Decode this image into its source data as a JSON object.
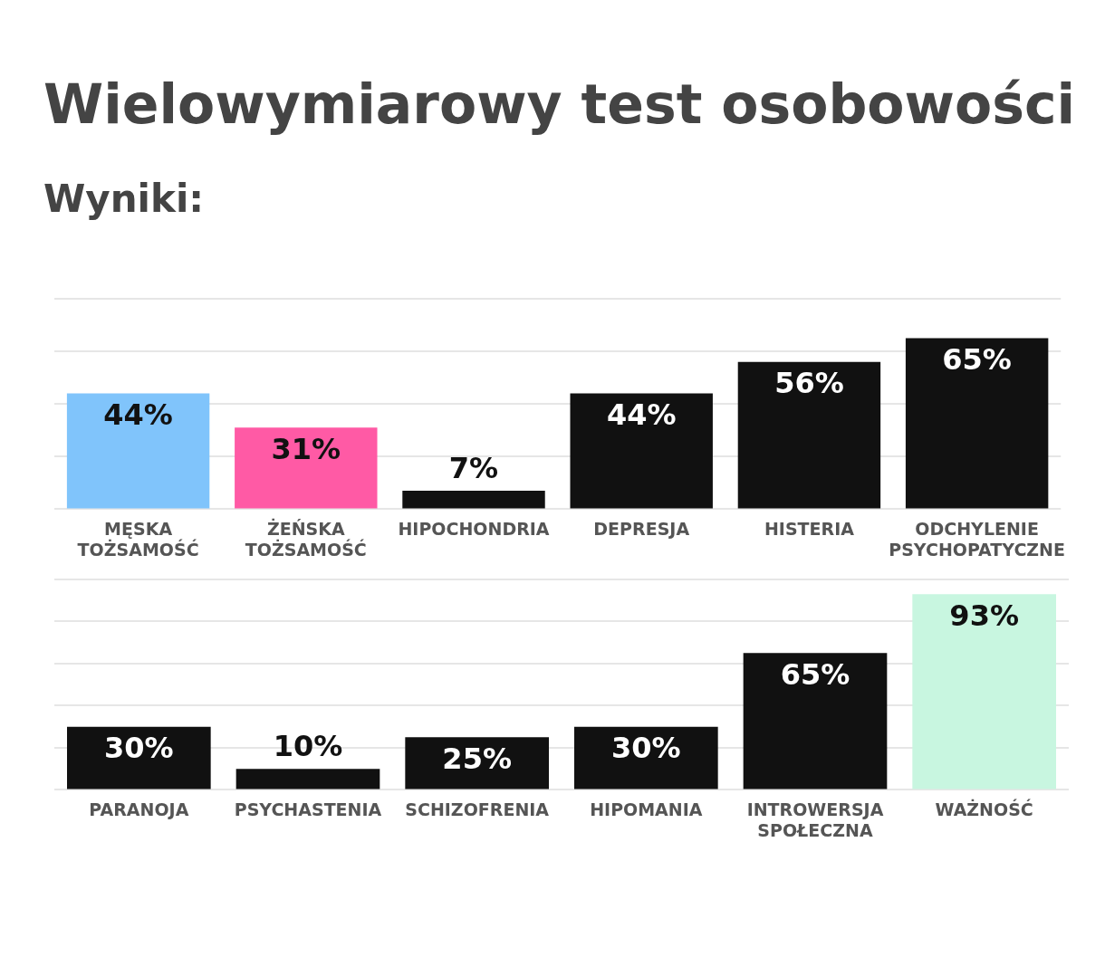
{
  "chart_data": [
    {
      "type": "bar",
      "title": "Wielowymiarowy test osobowości",
      "subtitle": "Wyniki:",
      "categories": [
        "MĘSKA TOŻSAMOŚĆ",
        "ŻEŃSKA TOŻSAMOŚĆ",
        "HIPOCHONDRIA",
        "DEPRESJA",
        "HISTERIA",
        "ODCHYLENIE PSYCHOPATYCZNE"
      ],
      "values": [
        44,
        31,
        7,
        44,
        56,
        65
      ],
      "colors": [
        "#80c4fb",
        "#ff5aa5",
        "#111111",
        "#111111",
        "#111111",
        "#111111"
      ],
      "tick_labels": "x",
      "grid": "y",
      "data_labels": true,
      "value_labels": [
        "44%",
        "31%",
        "7%",
        "44%",
        "56%",
        "65%"
      ]
    },
    {
      "type": "bar",
      "categories": [
        "PARANOJA",
        "PSYCHASTENIA",
        "SCHIZOFRENIA",
        "HIPOMANIA",
        "INTROWERSJA SPOŁECZNA",
        "WAŻNOŚĆ"
      ],
      "values": [
        30,
        10,
        25,
        30,
        65,
        93
      ],
      "colors": [
        "#111111",
        "#111111",
        "#111111",
        "#111111",
        "#111111",
        "#c8f6e0"
      ],
      "tick_labels": "x",
      "grid": "y",
      "data_labels": true,
      "value_labels": [
        "30%",
        "10%",
        "25%",
        "30%",
        "65%",
        "93%"
      ]
    }
  ]
}
